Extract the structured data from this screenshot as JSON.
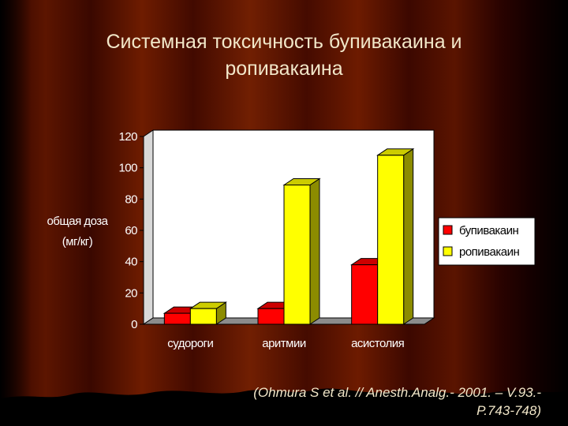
{
  "slide": {
    "title_line1": "Системная токсичность бупивакаина и",
    "title_line2": "ропивакаина",
    "citation_line1": "(Ohmura S et al. // Anesth.Analg.- 2001. – V.93.-",
    "citation_line2": "P.743-748)"
  },
  "colors": {
    "background_dark": "#1a0000",
    "curtain_red": "#6e1a00",
    "plot_area": "#ffffff",
    "series_bupivacaine": "#ff0000",
    "series_ropivacaine": "#ffff00"
  },
  "chart_data": {
    "type": "bar",
    "title": "",
    "xlabel": "",
    "ylabel": "общая доза (мг/кг)",
    "ylabel_line1": "общая доза",
    "ylabel_line2": "(мг/кг)",
    "categories": [
      "судороги",
      "аритмии",
      "асистолия"
    ],
    "series": [
      {
        "name": "бупивакаин",
        "color": "#ff0000",
        "values": [
          7,
          10,
          38
        ]
      },
      {
        "name": "ропивакаин",
        "color": "#ffff00",
        "values": [
          10,
          89,
          108
        ]
      }
    ],
    "ylim": [
      0,
      120
    ],
    "yticks": [
      0,
      20,
      40,
      60,
      80,
      100,
      120
    ],
    "grid": false,
    "legend": "right",
    "style": "3d"
  }
}
